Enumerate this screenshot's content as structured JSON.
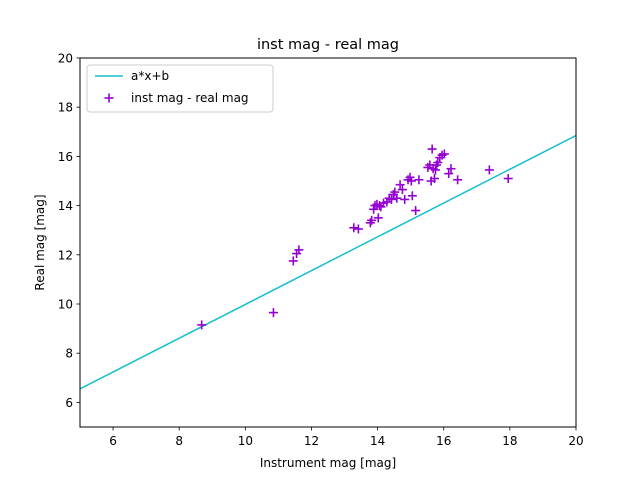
{
  "chart_data": {
    "type": "scatter",
    "title": "inst mag - real mag",
    "xlabel": "Instrument mag [mag]",
    "ylabel": "Real mag [mag]",
    "xlim": [
      5,
      20
    ],
    "ylim": [
      5,
      20
    ],
    "xticks": [
      6,
      8,
      10,
      12,
      14,
      16,
      18,
      20
    ],
    "yticks": [
      6,
      8,
      10,
      12,
      14,
      16,
      18,
      20
    ],
    "grid": false,
    "legend_position": "top-left",
    "series": [
      {
        "name": "a*x+b",
        "kind": "line",
        "color": "#17becf",
        "x": [
          5,
          20
        ],
        "y": [
          6.55,
          16.85
        ]
      },
      {
        "name": "inst mag - real mag",
        "kind": "scatter",
        "marker": "+",
        "color": "#9400d3",
        "x": [
          8.68,
          10.85,
          11.45,
          11.55,
          11.62,
          13.28,
          13.42,
          13.78,
          13.82,
          13.88,
          13.92,
          13.98,
          14.02,
          14.06,
          14.1,
          14.18,
          14.28,
          14.35,
          14.42,
          14.48,
          14.52,
          14.58,
          14.68,
          14.75,
          14.82,
          14.92,
          14.98,
          15.02,
          15.05,
          15.15,
          15.25,
          15.52,
          15.58,
          15.62,
          15.65,
          15.68,
          15.72,
          15.75,
          15.78,
          15.82,
          15.88,
          15.95,
          16.02,
          16.15,
          16.22,
          16.42,
          17.38,
          17.95
        ],
        "y": [
          9.15,
          9.65,
          11.75,
          12.05,
          12.2,
          13.1,
          13.05,
          13.3,
          13.4,
          13.85,
          14.0,
          14.05,
          13.5,
          14.0,
          13.95,
          14.1,
          14.15,
          14.3,
          14.25,
          14.45,
          14.55,
          14.3,
          14.85,
          14.65,
          14.25,
          15.05,
          15.15,
          15.0,
          14.4,
          13.8,
          15.05,
          15.55,
          15.65,
          15.0,
          16.3,
          15.5,
          15.1,
          15.45,
          15.65,
          15.75,
          15.95,
          16.05,
          16.1,
          15.3,
          15.5,
          15.05,
          15.45,
          15.1
        ]
      }
    ]
  }
}
